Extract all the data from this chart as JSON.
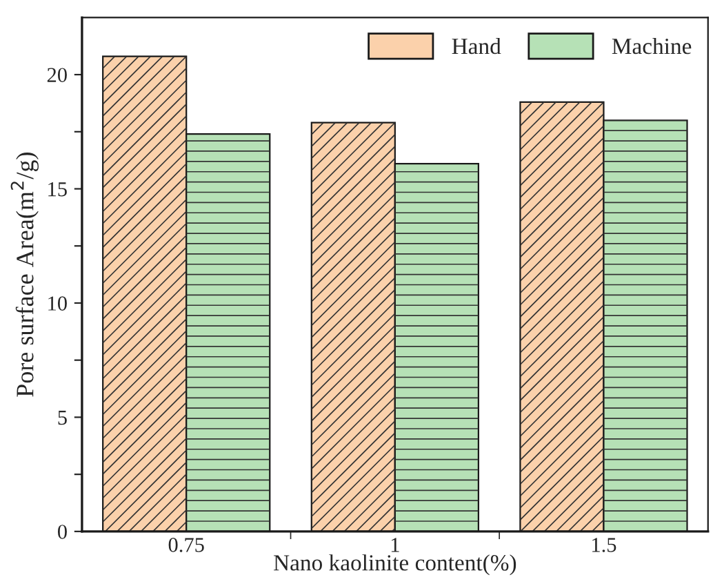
{
  "chart_data": {
    "type": "bar",
    "xlabel": "Nano kaolinite content(%)",
    "ylabel": "Pore surface Area(m$^{2}$/g)",
    "categories": [
      "0.75",
      "1",
      "1.5"
    ],
    "series": [
      {
        "name": "Hand",
        "color": "#fbd1ab",
        "values": [
          20.8,
          17.9,
          18.8
        ]
      },
      {
        "name": "Machine",
        "color": "#b6e1b6",
        "values": [
          17.4,
          16.1,
          18.0
        ]
      }
    ],
    "ylim": [
      0,
      22.5
    ],
    "yticks": [
      0,
      {
        "value": 2.5,
        "label": null
      },
      5,
      {
        "value": 7.5,
        "label": null
      },
      10,
      {
        "value": 12.5,
        "label": null
      },
      15,
      {
        "value": 17.5,
        "label": null
      },
      20
    ],
    "grid": false,
    "legend": "top right"
  }
}
